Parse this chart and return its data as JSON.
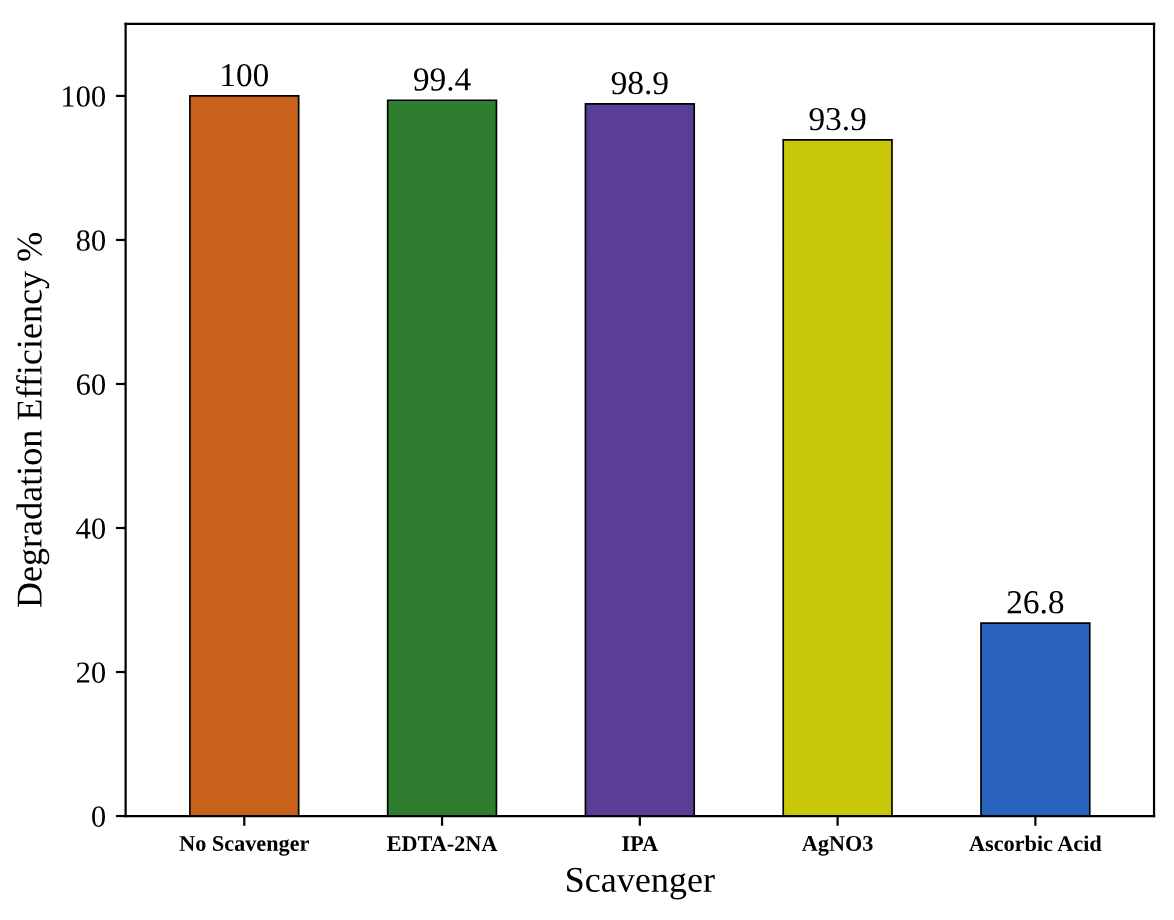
{
  "chart_data": {
    "type": "bar",
    "xlabel": "Scavenger",
    "ylabel": "Degradation Efficiency %",
    "categories": [
      "No Scavenger",
      "EDTA-2NA",
      "IPA",
      "AgNO3",
      "Ascorbic Acid"
    ],
    "values": [
      100,
      99.4,
      98.9,
      93.9,
      26.8
    ],
    "colors": [
      "#c8621a",
      "#2f7d2f",
      "#5a3d94",
      "#c9c70a",
      "#2a63bd"
    ],
    "data_labels": true,
    "ylim": [
      0,
      110
    ],
    "yticks": [
      0,
      20,
      40,
      60,
      80,
      100
    ],
    "grid": false
  }
}
